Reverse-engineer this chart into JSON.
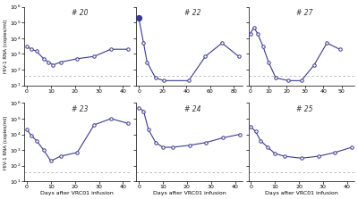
{
  "panels": [
    {
      "label": "# 20",
      "xlim": [
        -1,
        43
      ],
      "xticks": [
        0,
        10,
        20,
        30,
        40
      ],
      "ylim": [
        10,
        1000000.0
      ],
      "yticks": [
        10,
        100,
        1000,
        10000,
        100000,
        1000000
      ],
      "x": [
        0,
        2,
        4,
        7,
        9,
        11,
        14,
        21,
        28,
        35,
        42
      ],
      "y": [
        3000,
        2000,
        1500,
        500,
        300,
        200,
        300,
        500,
        700,
        2000,
        2000
      ],
      "detection_limit": 40,
      "filled": []
    },
    {
      "label": "# 22",
      "xlim": [
        -2,
        87
      ],
      "xticks": [
        0,
        20,
        40,
        60,
        80
      ],
      "ylim": [
        10,
        1000000.0
      ],
      "yticks": [
        10,
        100,
        1000,
        10000,
        100000,
        1000000
      ],
      "x": [
        0,
        4,
        7,
        14,
        21,
        42,
        56,
        70,
        84
      ],
      "y": [
        200000,
        5000,
        300,
        30,
        20,
        20,
        700,
        5000,
        700
      ],
      "detection_limit": 40,
      "filled": [
        0
      ]
    },
    {
      "label": "# 27",
      "xlim": [
        -1,
        57
      ],
      "xticks": [
        0,
        10,
        20,
        30,
        40,
        50
      ],
      "ylim": [
        10,
        1000000.0
      ],
      "yticks": [
        10,
        100,
        1000,
        10000,
        100000,
        1000000
      ],
      "x": [
        0,
        2,
        4,
        7,
        10,
        14,
        21,
        28,
        35,
        42,
        49
      ],
      "y": [
        20000,
        50000,
        20000,
        3000,
        300,
        30,
        20,
        20,
        200,
        5000,
        2000
      ],
      "detection_limit": 40,
      "filled": []
    },
    {
      "label": "# 23",
      "xlim": [
        -1,
        43
      ],
      "xticks": [
        0,
        10,
        20,
        30,
        40
      ],
      "ylim": [
        10,
        1000000.0
      ],
      "yticks": [
        10,
        100,
        1000,
        10000,
        100000,
        1000000
      ],
      "x": [
        0,
        2,
        4,
        7,
        10,
        14,
        21,
        28,
        35,
        42
      ],
      "y": [
        20000,
        8000,
        4000,
        1000,
        200,
        400,
        700,
        40000,
        100000,
        50000
      ],
      "detection_limit": 40,
      "filled": []
    },
    {
      "label": "# 24",
      "xlim": [
        -1,
        43
      ],
      "xticks": [
        0,
        10,
        20,
        30,
        40
      ],
      "ylim": [
        10,
        1000000.0
      ],
      "yticks": [
        10,
        100,
        1000,
        10000,
        100000,
        1000000
      ],
      "x": [
        0,
        2,
        4,
        7,
        10,
        14,
        21,
        28,
        35,
        42
      ],
      "y": [
        500000,
        300000,
        20000,
        3000,
        1500,
        1500,
        2000,
        3000,
        6000,
        10000
      ],
      "detection_limit": 40,
      "filled": []
    },
    {
      "label": "# 25",
      "xlim": [
        -1,
        43
      ],
      "xticks": [
        0,
        10,
        20,
        30,
        40
      ],
      "ylim": [
        10,
        1000000.0
      ],
      "yticks": [
        10,
        100,
        1000,
        10000,
        100000,
        1000000
      ],
      "x": [
        0,
        2,
        4,
        7,
        10,
        14,
        21,
        28,
        35,
        42
      ],
      "y": [
        30000,
        15000,
        4000,
        1500,
        600,
        400,
        300,
        400,
        700,
        1500
      ],
      "detection_limit": 40,
      "filled": []
    }
  ],
  "line_color": "#3a3a8c",
  "marker": "o",
  "marker_size": 2.5,
  "marker_face": "white",
  "ylabel": "HIV-1 RNA (copies/ml)",
  "xlabel": "Days after VRC01 infusion",
  "detection_line_color": "#b0b0b0",
  "fig_bg": "#ffffff"
}
